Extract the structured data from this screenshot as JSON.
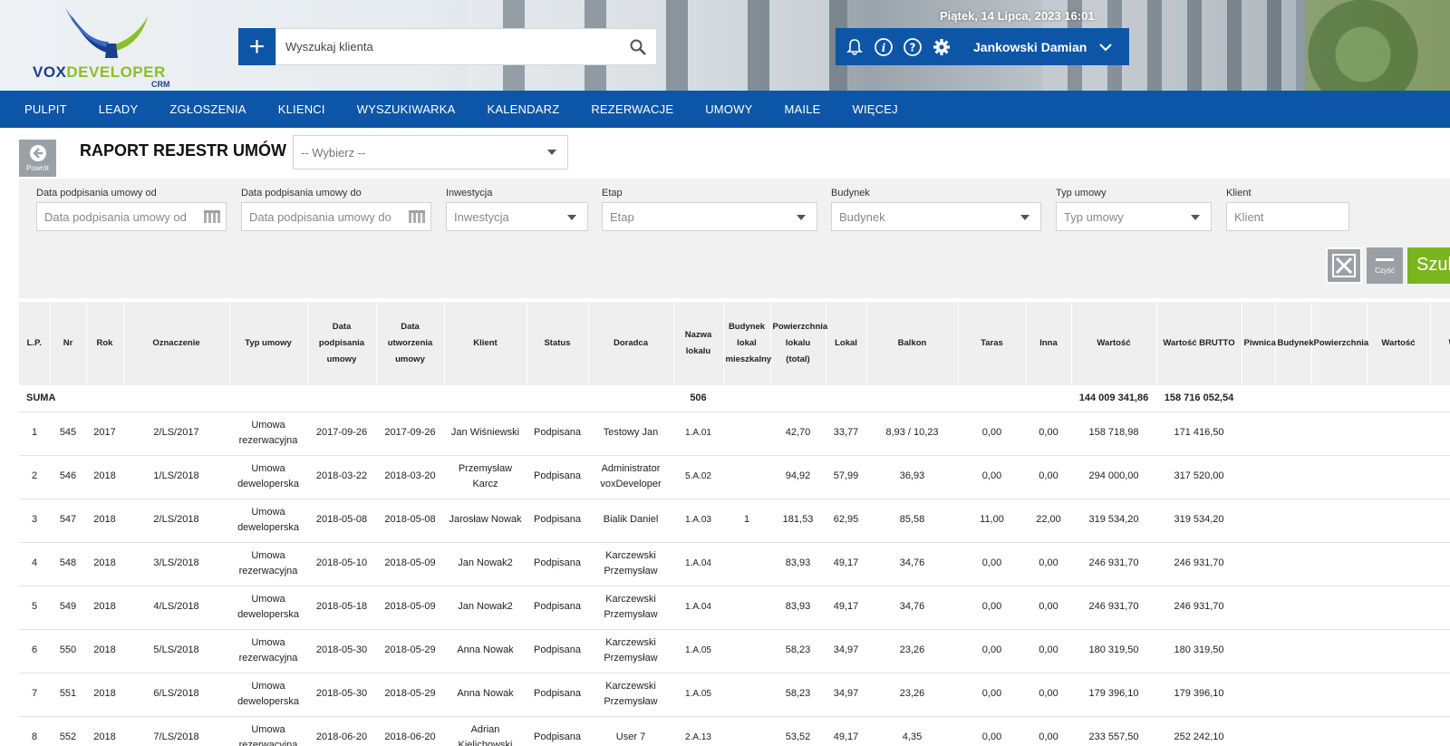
{
  "header": {
    "logo": {
      "part1": "VOX",
      "part2": "DEVELOPER",
      "sub": "CRM"
    },
    "search_placeholder": "Wyszukaj klienta",
    "date_text": "Piątek, 14 Lipca, 2023   16:01",
    "user_name": "Jankowski Damian",
    "icons": [
      "bell-icon",
      "info-icon",
      "help-icon",
      "gear-icon",
      "chevron-down-icon"
    ]
  },
  "nav": [
    "PULPIT",
    "LEADY",
    "ZGŁOSZENIA",
    "KLIENCI",
    "WYSZUKIWARKA",
    "KALENDARZ",
    "REZERWACJE",
    "UMOWY",
    "MAILE",
    "WIĘCEJ"
  ],
  "page": {
    "back_label": "Powrót",
    "title": "RAPORT REJESTR UMÓW",
    "select_placeholder": "-- Wybierz --"
  },
  "filters": [
    {
      "label": "Data podpisania umowy od",
      "placeholder": "Data podpisania umowy od",
      "kind": "date"
    },
    {
      "label": "Data podpisania umowy do",
      "placeholder": "Data podpisania umowy do",
      "kind": "date"
    },
    {
      "label": "Inwestycja",
      "placeholder": "Inwestycja",
      "kind": "select"
    },
    {
      "label": "Etap",
      "placeholder": "Etap",
      "kind": "select"
    },
    {
      "label": "Budynek",
      "placeholder": "Budynek",
      "kind": "select"
    },
    {
      "label": "Typ umowy",
      "placeholder": "Typ umowy",
      "kind": "select"
    },
    {
      "label": "Klient",
      "placeholder": "Klient",
      "kind": "text"
    }
  ],
  "buttons": {
    "clear_label": "Czyść",
    "search_label": "Szukaj"
  },
  "table": {
    "headers": [
      "L.P.",
      "Nr",
      "Rok",
      "Oznaczenie",
      "Typ umowy",
      "Data podpisania umowy",
      "Data utworzenia umowy",
      "Klient",
      "Status",
      "Doradca",
      "Nazwa lokalu",
      "Budynek lokal mieszkalny",
      "Powierzchnia lokalu (total)",
      "Lokal",
      "Balkon",
      "Taras",
      "Inna",
      "Wartość",
      "Wartość BRUTTO",
      "Piwnica",
      "Budynek",
      "Powierzchnia",
      "Wartość",
      "Wa"
    ],
    "sum": {
      "label": "SUMA",
      "nazwa_lokalu": "506",
      "wartosc": "144 009 341,86",
      "wartosc_brutto": "158 716 052,54"
    },
    "rows": [
      [
        "1",
        "545",
        "2017",
        "2/LS/2017",
        "Umowa rezerwacyjna",
        "2017-09-26",
        "2017-09-26",
        "Jan Wiśniewski",
        "Podpisana",
        "Testowy Jan",
        "1.A.01",
        "",
        "42,70",
        "33,77",
        "8,93 / 10,23",
        "0,00",
        "0,00",
        "158 718,98",
        "171 416,50"
      ],
      [
        "2",
        "546",
        "2018",
        "1/LS/2018",
        "Umowa deweloperska",
        "2018-03-22",
        "2018-03-20",
        "Przemysław Karcz",
        "Podpisana",
        "Administrator voxDeveloper",
        "5.A.02",
        "",
        "94,92",
        "57,99",
        "36,93",
        "0,00",
        "0,00",
        "294 000,00",
        "317 520,00"
      ],
      [
        "3",
        "547",
        "2018",
        "2/LS/2018",
        "Umowa deweloperska",
        "2018-05-08",
        "2018-05-08",
        "Jarosław Nowak",
        "Podpisana",
        "Bialik Daniel",
        "1.A.03",
        "1",
        "181,53",
        "62,95",
        "85,58",
        "11,00",
        "22,00",
        "319 534,20",
        "319 534,20"
      ],
      [
        "4",
        "548",
        "2018",
        "3/LS/2018",
        "Umowa rezerwacyjna",
        "2018-05-10",
        "2018-05-09",
        "Jan Nowak2",
        "Podpisana",
        "Karczewski Przemysław",
        "1.A.04",
        "",
        "83,93",
        "49,17",
        "34,76",
        "0,00",
        "0,00",
        "246 931,70",
        "246 931,70"
      ],
      [
        "5",
        "549",
        "2018",
        "4/LS/2018",
        "Umowa deweloperska",
        "2018-05-18",
        "2018-05-09",
        "Jan Nowak2",
        "Podpisana",
        "Karczewski Przemysław",
        "1.A.04",
        "",
        "83,93",
        "49,17",
        "34,76",
        "0,00",
        "0,00",
        "246 931,70",
        "246 931,70"
      ],
      [
        "6",
        "550",
        "2018",
        "5/LS/2018",
        "Umowa rezerwacyjna",
        "2018-05-30",
        "2018-05-29",
        "Anna Nowak",
        "Podpisana",
        "Karczewski Przemysław",
        "1.A.05",
        "",
        "58,23",
        "34,97",
        "23,26",
        "0,00",
        "0,00",
        "180 319,50",
        "180 319,50"
      ],
      [
        "7",
        "551",
        "2018",
        "6/LS/2018",
        "Umowa deweloperska",
        "2018-05-30",
        "2018-05-29",
        "Anna Nowak",
        "Podpisana",
        "Karczewski Przemysław",
        "1.A.05",
        "",
        "58,23",
        "34,97",
        "23,26",
        "0,00",
        "0,00",
        "179 396,10",
        "179 396,10"
      ],
      [
        "8",
        "552",
        "2018",
        "7/LS/2018",
        "Umowa rezerwacyjna",
        "2018-06-20",
        "2018-06-20",
        "Adrian Kielichowski",
        "Podpisana",
        "User 7",
        "2.A.13",
        "",
        "53,52",
        "49,17",
        "4,35",
        "0,00",
        "0,00",
        "233 557,50",
        "252 242,10"
      ]
    ]
  },
  "colors": {
    "primary": "#0d56a7",
    "accent_green": "#7ab51d",
    "gray_button": "#9aa0a6"
  }
}
